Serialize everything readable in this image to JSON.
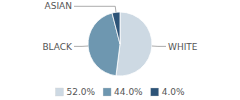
{
  "chart_data": {
    "type": "pie",
    "categories": [
      "WHITE",
      "BLACK",
      "ASIAN"
    ],
    "values": [
      52.0,
      44.0,
      4.0
    ],
    "value_labels": [
      "52.0%",
      "44.0%",
      "4.0%"
    ],
    "colors": [
      "#cdd9e3",
      "#6e97b0",
      "#2d5478"
    ],
    "legend": "bottom"
  }
}
